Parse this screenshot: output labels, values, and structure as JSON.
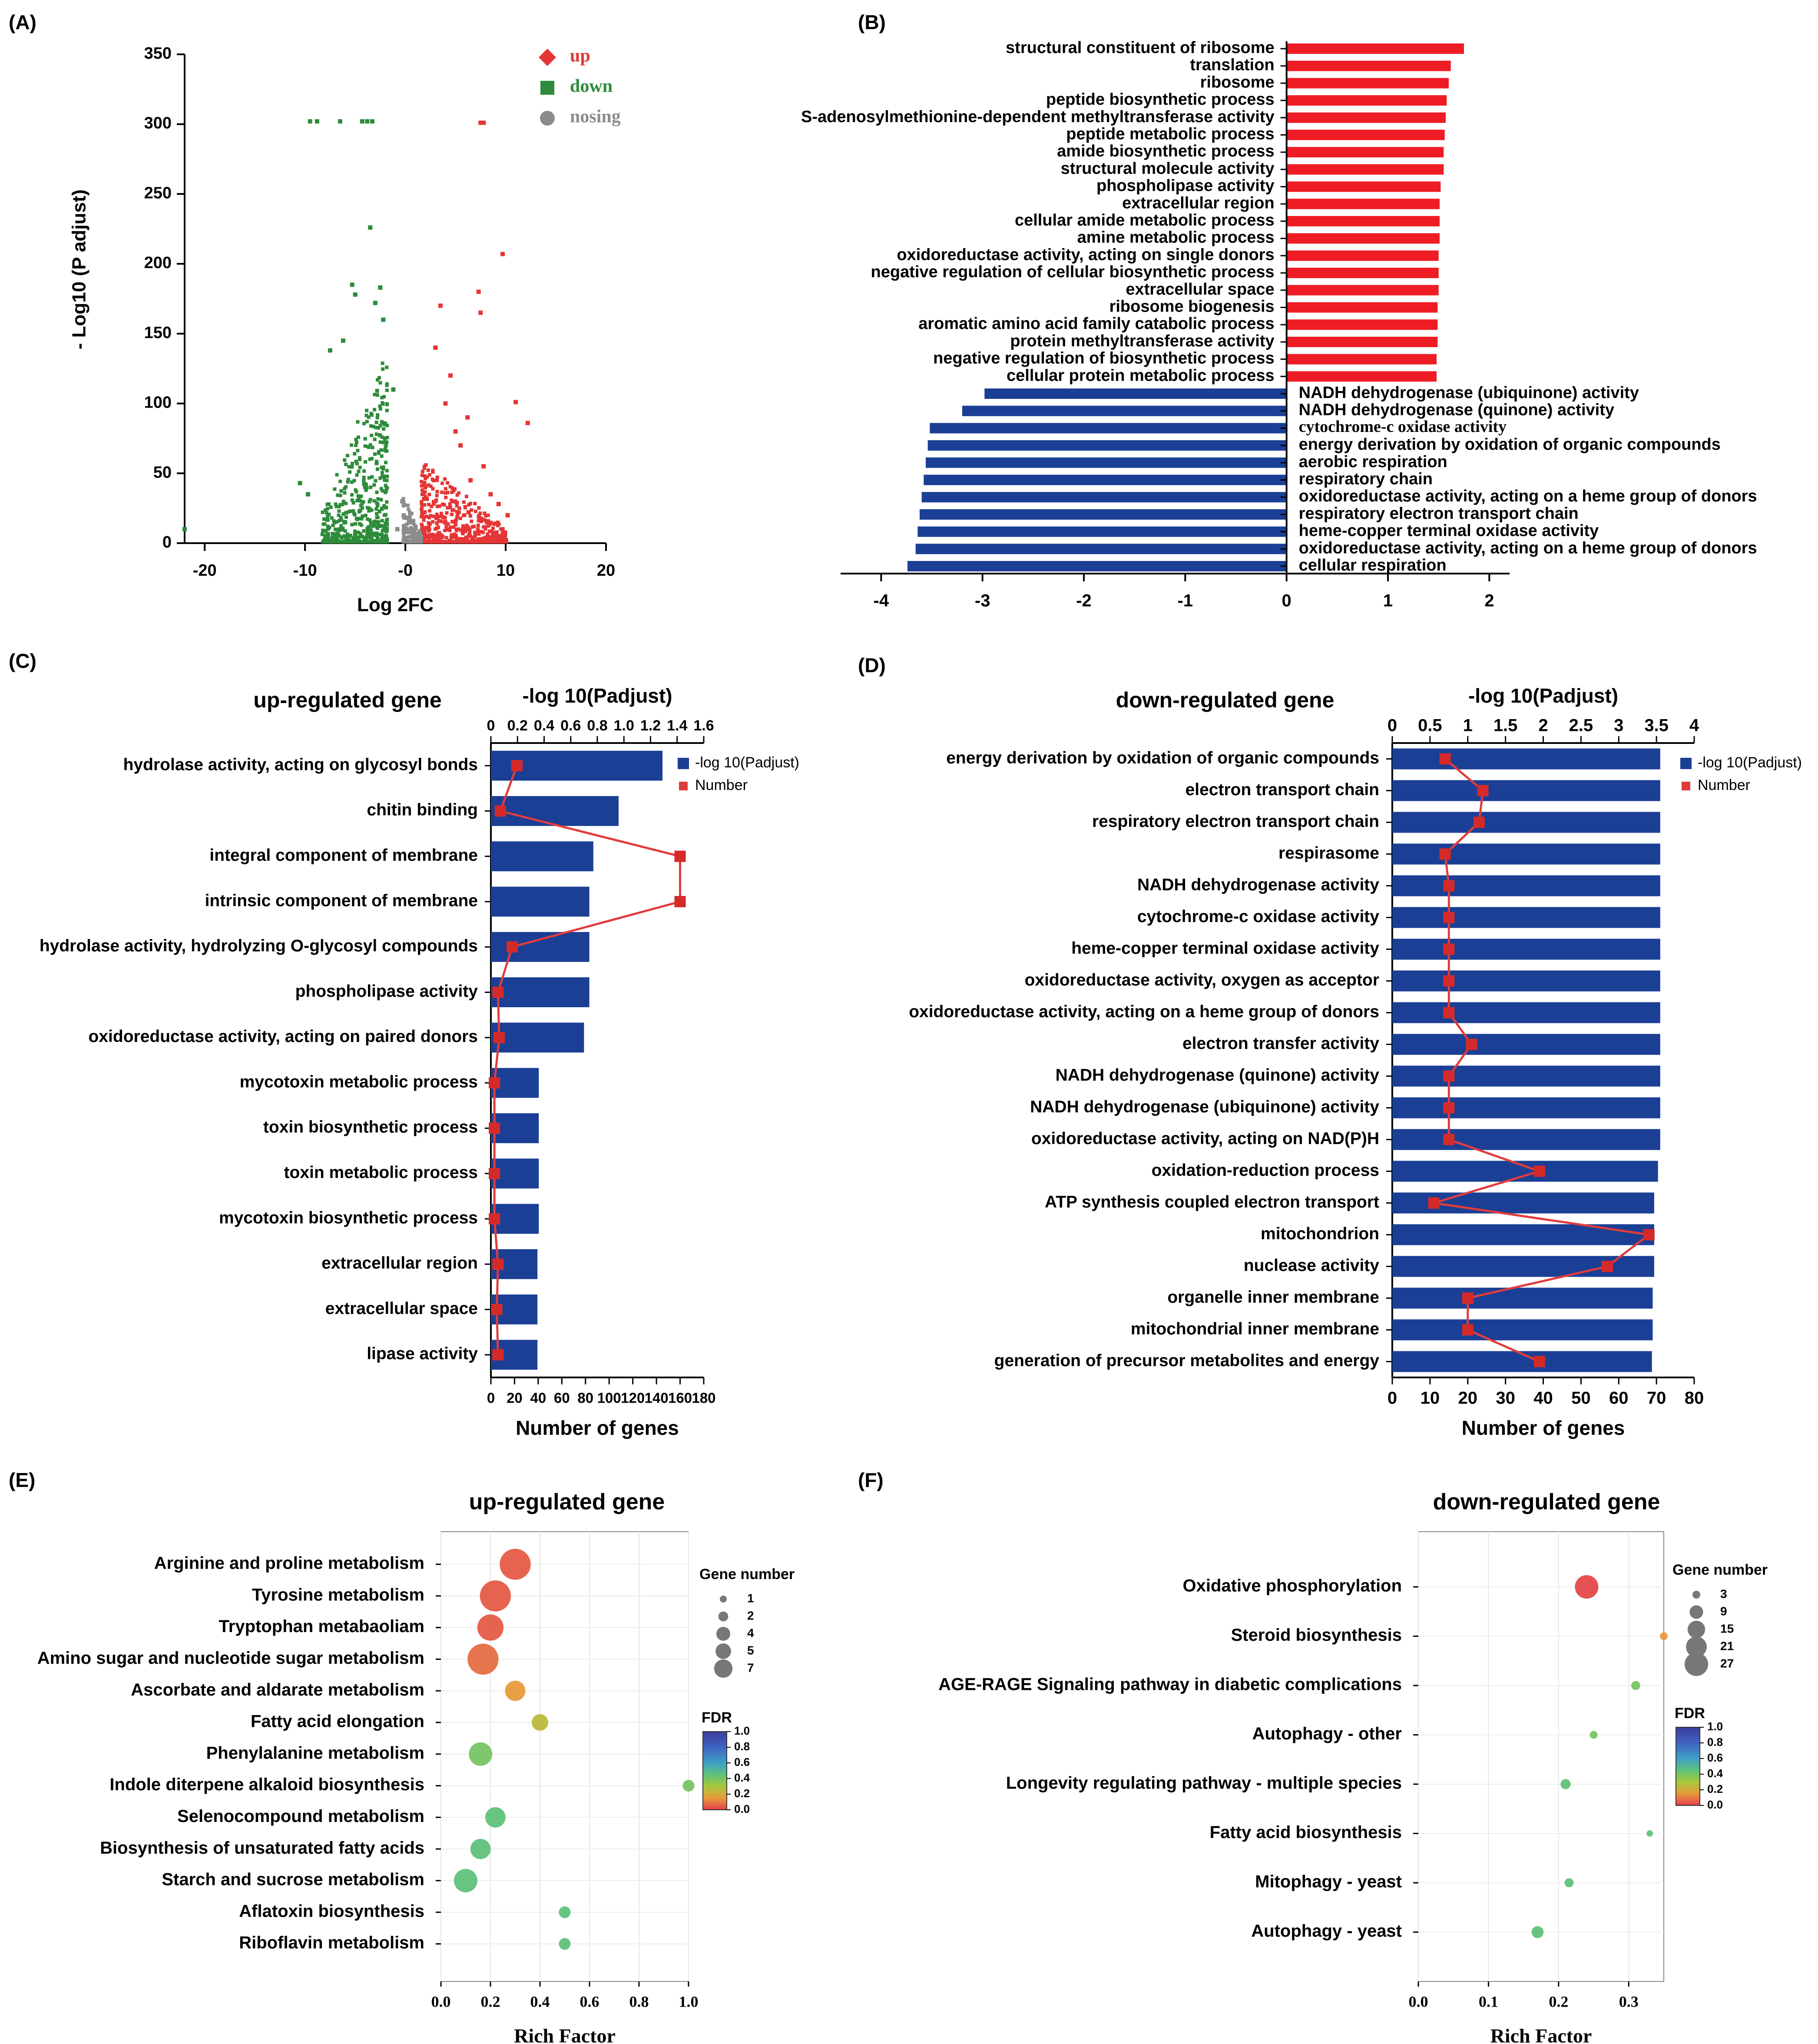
{
  "colors": {
    "up": "#e53535",
    "down": "#2e8b3a",
    "nosing": "#8c8c8c",
    "bar_red": "#ee1c25",
    "bar_blue": "#1b3f95",
    "line_red": "#e03c3c",
    "axis": "#000000"
  },
  "panels": [
    "(A)",
    "(B)",
    "(C)",
    "(D)",
    "(E)",
    "(F)"
  ],
  "chart_data": [
    {
      "panel": "(A)",
      "type": "scatter",
      "title": "",
      "xlabel": "Log 2FC",
      "ylabel": "- Log10 (P adjust)",
      "xlim": [
        -22,
        20
      ],
      "ylim": [
        0,
        350
      ],
      "xticks": [
        -20,
        -10,
        0,
        10,
        20
      ],
      "xtick_labels": [
        "-20",
        "-10",
        "-0",
        "10",
        "20"
      ],
      "yticks": [
        0,
        50,
        100,
        150,
        200,
        250,
        300,
        350
      ],
      "legend": [
        {
          "name": "up",
          "marker": "diamond"
        },
        {
          "name": "down",
          "marker": "square"
        },
        {
          "name": "nosing",
          "marker": "circle"
        }
      ],
      "legend_position": "top-right",
      "series": [
        {
          "name": "up",
          "points": [
            [
              7.5,
              301
            ],
            [
              7.8,
              301
            ],
            [
              9.7,
              207
            ],
            [
              11,
              101
            ],
            [
              12.2,
              86
            ],
            [
              7.5,
              165
            ],
            [
              7.3,
              180
            ],
            [
              3.5,
              170
            ],
            [
              3.0,
              140
            ],
            [
              4.5,
              120
            ],
            [
              6.2,
              90
            ],
            [
              5.5,
              70
            ],
            [
              7.8,
              55
            ],
            [
              8.5,
              35
            ],
            [
              9.3,
              28
            ],
            [
              10.2,
              20
            ],
            [
              6.5,
              45
            ],
            [
              4.0,
              100
            ],
            [
              5.0,
              80
            ]
          ]
        },
        {
          "name": "down",
          "points": [
            [
              -9.5,
              302
            ],
            [
              -8.8,
              302
            ],
            [
              -6.5,
              302
            ],
            [
              -4.3,
              302
            ],
            [
              -3.8,
              302
            ],
            [
              -3.3,
              302
            ],
            [
              -3.5,
              226
            ],
            [
              -5.3,
              185
            ],
            [
              -2.5,
              183
            ],
            [
              -5.0,
              178
            ],
            [
              -3.0,
              172
            ],
            [
              -2.2,
              160
            ],
            [
              -7.5,
              138
            ],
            [
              -6.2,
              145
            ],
            [
              -1.2,
              110
            ],
            [
              -22,
              10
            ],
            [
              -10.5,
              43
            ],
            [
              -9.7,
              35
            ]
          ]
        },
        {
          "name": "nosing",
          "points": [
            [
              -0.8,
              10
            ],
            [
              0.4,
              8
            ],
            [
              -0.3,
              30
            ],
            [
              0.2,
              18
            ]
          ]
        }
      ]
    },
    {
      "panel": "(B)",
      "type": "bar",
      "orientation": "horizontal",
      "xlim": [
        -4.4,
        2.2
      ],
      "xticks": [
        -4,
        -3,
        -2,
        -1,
        0,
        1,
        2
      ],
      "categories": [
        "structural constituent of ribosome",
        "translation",
        "ribosome",
        "peptide biosynthetic process",
        "S-adenosylmethionine-dependent methyltransferase activity",
        "peptide metabolic process",
        "amide biosynthetic process",
        "structural molecule activity",
        "phospholipase activity",
        "extracellular region",
        "cellular amide metabolic process",
        "amine metabolic process",
        "oxidoreductase activity, acting on single donors",
        "negative regulation of cellular biosynthetic process",
        "extracellular space",
        "ribosome biogenesis",
        "aromatic amino acid family catabolic process",
        "protein methyltransferase activity",
        "negative regulation of biosynthetic process",
        "cellular protein metabolic process",
        "NADH dehydrogenase (ubiquinone) activity",
        "NADH dehydrogenase (quinone) activity",
        "cytochrome-c oxidase activity",
        "energy derivation by oxidation of organic compounds",
        "aerobic respiration",
        "respiratory chain",
        "oxidoreductase activity, acting on a heme group of donors",
        "respiratory electron transport chain",
        "heme-copper terminal oxidase activity",
        "oxidoreductase activity, acting on a heme group of donors",
        "cellular respiration"
      ],
      "values": [
        1.75,
        1.62,
        1.6,
        1.58,
        1.57,
        1.56,
        1.55,
        1.55,
        1.52,
        1.51,
        1.51,
        1.51,
        1.5,
        1.5,
        1.5,
        1.49,
        1.49,
        1.49,
        1.48,
        1.48,
        -2.98,
        -3.2,
        -3.52,
        -3.54,
        -3.56,
        -3.58,
        -3.6,
        -3.62,
        -3.64,
        -3.66,
        -3.74
      ]
    },
    {
      "panel": "(C)",
      "type": "bar",
      "orientation": "horizontal",
      "title": "up-regulated gene",
      "xlabel": "Number of genes",
      "top_label": "-log 10(Padjust)",
      "xlim": [
        0,
        180
      ],
      "xticks": [
        0,
        20,
        40,
        60,
        80,
        100,
        120,
        140,
        160,
        180
      ],
      "top_lim": [
        0,
        1.6
      ],
      "top_ticks": [
        "0",
        "0.2",
        "0.4",
        "0.6",
        "0.8",
        "1.0",
        "1.2",
        "1.4",
        "1.6"
      ],
      "legend": [
        "-log 10(Padjust)",
        "Number"
      ],
      "legend_position": "top-right",
      "categories": [
        "hydrolase activity, acting on glycosyl bonds",
        "chitin binding",
        "integral component of membrane",
        "intrinsic component of membrane",
        "hydrolase activity, hydrolyzing O-glycosyl compounds",
        "phospholipase activity",
        "oxidoreductase activity, acting on paired donors",
        "mycotoxin metabolic process",
        "toxin biosynthetic process",
        "toxin metabolic process",
        "mycotoxin biosynthetic process",
        "extracellular region",
        "extracellular space",
        "lipase activity"
      ],
      "series": [
        {
          "name": "-log 10(Padjust)",
          "values": [
            1.29,
            0.96,
            0.77,
            0.74,
            0.74,
            0.74,
            0.7,
            0.36,
            0.36,
            0.36,
            0.36,
            0.35,
            0.35,
            0.35
          ]
        },
        {
          "name": "Number",
          "values": [
            22,
            8,
            160,
            160,
            18,
            6,
            7,
            3,
            3,
            3,
            3,
            6,
            5,
            6
          ]
        }
      ]
    },
    {
      "panel": "(D)",
      "type": "bar",
      "orientation": "horizontal",
      "title": "down-regulated gene",
      "xlabel": "Number of genes",
      "top_label": "-log 10(Padjust)",
      "xlim": [
        0,
        80
      ],
      "xticks": [
        0,
        10,
        20,
        30,
        40,
        50,
        60,
        70,
        80
      ],
      "top_lim": [
        0,
        4
      ],
      "top_ticks": [
        "0",
        "0.5",
        "1",
        "1.5",
        "2",
        "2.5",
        "3",
        "3.5",
        "4"
      ],
      "legend": [
        "-log 10(Padjust)",
        "Number"
      ],
      "legend_position": "top-right",
      "categories": [
        "energy derivation by oxidation of organic compounds",
        "electron transport chain",
        "respiratory electron transport chain",
        "respirasome",
        "NADH dehydrogenase activity",
        "cytochrome-c oxidase activity",
        "heme-copper terminal oxidase activity",
        "oxidoreductase activity, oxygen as acceptor",
        "oxidoreductase activity, acting on a heme group of donors",
        "electron transfer activity",
        "NADH dehydrogenase (quinone) activity",
        "NADH dehydrogenase (ubiquinone) activity",
        "oxidoreductase activity, acting on NAD(P)H",
        "oxidation-reduction process",
        "ATP synthesis coupled electron transport",
        "mitochondrion",
        "nuclease activity",
        "organelle inner membrane",
        "mitochondrial inner membrane",
        "generation of precursor metabolites and energy"
      ],
      "series": [
        {
          "name": "-log 10(Padjust)",
          "values": [
            3.55,
            3.55,
            3.55,
            3.55,
            3.55,
            3.55,
            3.55,
            3.55,
            3.55,
            3.55,
            3.55,
            3.55,
            3.55,
            3.52,
            3.47,
            3.47,
            3.47,
            3.45,
            3.45,
            3.44
          ]
        },
        {
          "name": "Number",
          "values": [
            14,
            24,
            23,
            14,
            15,
            15,
            15,
            15,
            15,
            21,
            15,
            15,
            15,
            39,
            11,
            68,
            57,
            20,
            20,
            39
          ]
        }
      ]
    },
    {
      "panel": "(E)",
      "type": "scatter",
      "title": "up-regulated gene",
      "xlabel": "Rich Factor",
      "xlim": [
        0,
        1.0
      ],
      "xticks": [
        "0.0",
        "0.2",
        "0.4",
        "0.6",
        "0.8",
        "1.0"
      ],
      "size_legend_title": "Gene number",
      "size_legend": [
        1,
        2,
        4,
        5,
        7
      ],
      "color_legend_title": "FDR",
      "color_ticks": [
        "1.0",
        "0.8",
        "0.6",
        "0.4",
        "0.2",
        "0.0"
      ],
      "categories": [
        "Arginine and proline metabolism",
        "Tyrosine metabolism",
        "Tryptophan metabaoliam",
        "Amino sugar and nucleotide sugar metabolism",
        "Ascorbate and aldarate metabolism",
        "Fatty acid elongation",
        "Phenylalanine metabolism",
        "Indole diterpene alkaloid biosynthesis",
        "Selenocompound metabolism",
        "Biosynthesis of unsaturated fatty acids",
        "Starch and sucrose metabolism",
        "Aflatoxin biosynthesis",
        "Riboflavin metabolism"
      ],
      "rich_factor": [
        0.3,
        0.22,
        0.2,
        0.17,
        0.3,
        0.4,
        0.16,
        1.0,
        0.22,
        0.16,
        0.1,
        0.5,
        0.5
      ],
      "gene_number": [
        7,
        7,
        5,
        7,
        3,
        2,
        4,
        1,
        3,
        3,
        4,
        1,
        1
      ],
      "fdr": [
        0.05,
        0.05,
        0.05,
        0.08,
        0.15,
        0.25,
        0.4,
        0.4,
        0.45,
        0.45,
        0.45,
        0.45,
        0.45
      ]
    },
    {
      "panel": "(F)",
      "type": "scatter",
      "title": "down-regulated gene",
      "xlabel": "Rich Factor",
      "xlim": [
        0,
        0.35
      ],
      "xticks": [
        "0.0",
        "0.1",
        "0.2",
        "0.3"
      ],
      "size_legend_title": "Gene number",
      "size_legend": [
        3,
        9,
        15,
        21,
        27
      ],
      "color_legend_title": "FDR",
      "color_ticks": [
        "1.0",
        "0.8",
        "0.6",
        "0.4",
        "0.2",
        "0.0"
      ],
      "categories": [
        "Oxidative phosphorylation",
        "Steroid biosynthesis",
        "AGE-RAGE Signaling pathway in diabetic complications",
        "Autophagy - other",
        "Longevity regulating pathway - multiple species",
        "Fatty acid biosynthesis",
        "Mitophagy - yeast",
        "Autophagy - yeast"
      ],
      "rich_factor": [
        0.24,
        0.35,
        0.31,
        0.25,
        0.21,
        0.33,
        0.215,
        0.17
      ],
      "gene_number": [
        27,
        3,
        4,
        3,
        5,
        2,
        4,
        7
      ],
      "fdr": [
        0.02,
        0.15,
        0.4,
        0.4,
        0.45,
        0.45,
        0.45,
        0.45
      ]
    }
  ]
}
